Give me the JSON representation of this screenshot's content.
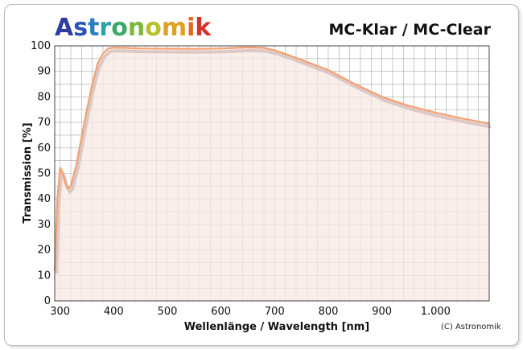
{
  "brand": {
    "letters": [
      {
        "ch": "A",
        "color": "#2f3d9e"
      },
      {
        "ch": "s",
        "color": "#2a52b8"
      },
      {
        "ch": "t",
        "color": "#2a7fc0"
      },
      {
        "ch": "r",
        "color": "#2ea0a8"
      },
      {
        "ch": "o",
        "color": "#3aa86a"
      },
      {
        "ch": "n",
        "color": "#7cb83a"
      },
      {
        "ch": "o",
        "color": "#b8c02a"
      },
      {
        "ch": "m",
        "color": "#e0a020"
      },
      {
        "ch": "i",
        "color": "#e06a20"
      },
      {
        "ch": "k",
        "color": "#d8302a"
      }
    ]
  },
  "chart_data": {
    "type": "line",
    "title": "MC-Klar / MC-Clear",
    "xlabel": "Wellenlänge / Wavelength [nm]",
    "ylabel": "Transmission [%]",
    "copyright": "(C) Astronomik",
    "xlim": [
      290,
      1100
    ],
    "ylim": [
      0,
      100
    ],
    "x_ticks": [
      {
        "value": 300,
        "label": "300"
      },
      {
        "value": 400,
        "label": "400"
      },
      {
        "value": 500,
        "label": "500"
      },
      {
        "value": 600,
        "label": "600"
      },
      {
        "value": 700,
        "label": "700"
      },
      {
        "value": 800,
        "label": "800"
      },
      {
        "value": 900,
        "label": "900"
      },
      {
        "value": 1000,
        "label": "1.000"
      }
    ],
    "y_ticks": [
      0,
      10,
      20,
      30,
      40,
      50,
      60,
      70,
      80,
      90,
      100
    ],
    "grid": true,
    "x_minor_step": 20,
    "y_minor_step": 5,
    "colors": {
      "line": "#f5a070",
      "shadow": "#dcc8c4",
      "fill": "#f8e8e4",
      "grid": "#a8a8a8"
    },
    "series": [
      {
        "x": [
          290,
          295,
          300,
          305,
          310,
          315,
          320,
          330,
          340,
          350,
          360,
          370,
          380,
          390,
          400,
          420,
          450,
          500,
          550,
          600,
          650,
          680,
          700,
          720,
          750,
          800,
          850,
          900,
          950,
          1000,
          1050,
          1100
        ],
        "values": [
          12,
          40,
          52,
          50,
          46,
          44,
          45,
          53,
          64,
          75,
          85,
          93,
          97,
          99,
          99.3,
          99.2,
          99,
          98.9,
          98.8,
          99,
          99.4,
          99.2,
          98.3,
          96.8,
          94.5,
          90.5,
          85,
          80,
          76.5,
          73.8,
          71.5,
          69.5
        ]
      }
    ]
  }
}
